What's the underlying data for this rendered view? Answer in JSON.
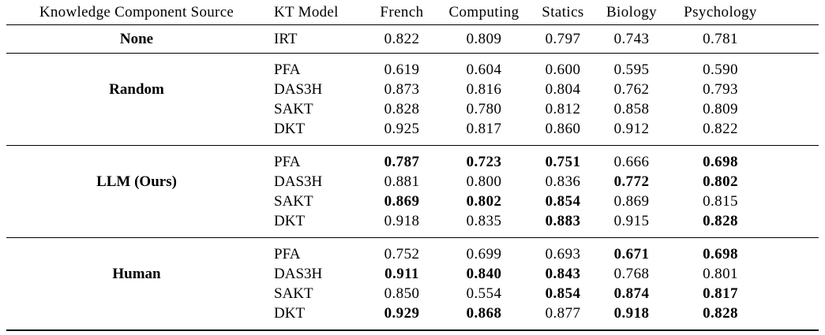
{
  "colors": {
    "text": "#000000",
    "rule": "#000000",
    "background": "#ffffff"
  },
  "table": {
    "columns": [
      "Knowledge Component Source",
      "KT Model",
      "French",
      "Computing",
      "Statics",
      "Biology",
      "Psychology"
    ],
    "sections": [
      {
        "source": "None",
        "rows": [
          {
            "model": "IRT",
            "values": [
              "0.822",
              "0.809",
              "0.797",
              "0.743",
              "0.781"
            ],
            "bold": [
              false,
              false,
              false,
              false,
              false
            ]
          }
        ]
      },
      {
        "source": "Random",
        "rows": [
          {
            "model": "PFA",
            "values": [
              "0.619",
              "0.604",
              "0.600",
              "0.595",
              "0.590"
            ],
            "bold": [
              false,
              false,
              false,
              false,
              false
            ]
          },
          {
            "model": "DAS3H",
            "values": [
              "0.873",
              "0.816",
              "0.804",
              "0.762",
              "0.793"
            ],
            "bold": [
              false,
              false,
              false,
              false,
              false
            ]
          },
          {
            "model": "SAKT",
            "values": [
              "0.828",
              "0.780",
              "0.812",
              "0.858",
              "0.809"
            ],
            "bold": [
              false,
              false,
              false,
              false,
              false
            ]
          },
          {
            "model": "DKT",
            "values": [
              "0.925",
              "0.817",
              "0.860",
              "0.912",
              "0.822"
            ],
            "bold": [
              false,
              false,
              false,
              false,
              false
            ]
          }
        ]
      },
      {
        "source": "LLM (Ours)",
        "rows": [
          {
            "model": "PFA",
            "values": [
              "0.787",
              "0.723",
              "0.751",
              "0.666",
              "0.698"
            ],
            "bold": [
              true,
              true,
              true,
              false,
              true
            ]
          },
          {
            "model": "DAS3H",
            "values": [
              "0.881",
              "0.800",
              "0.836",
              "0.772",
              "0.802"
            ],
            "bold": [
              false,
              false,
              false,
              true,
              true
            ]
          },
          {
            "model": "SAKT",
            "values": [
              "0.869",
              "0.802",
              "0.854",
              "0.869",
              "0.815"
            ],
            "bold": [
              true,
              true,
              true,
              false,
              false
            ]
          },
          {
            "model": "DKT",
            "values": [
              "0.918",
              "0.835",
              "0.883",
              "0.915",
              "0.828"
            ],
            "bold": [
              false,
              false,
              true,
              false,
              true
            ]
          }
        ]
      },
      {
        "source": "Human",
        "rows": [
          {
            "model": "PFA",
            "values": [
              "0.752",
              "0.699",
              "0.693",
              "0.671",
              "0.698"
            ],
            "bold": [
              false,
              false,
              false,
              true,
              true
            ]
          },
          {
            "model": "DAS3H",
            "values": [
              "0.911",
              "0.840",
              "0.843",
              "0.768",
              "0.801"
            ],
            "bold": [
              true,
              true,
              true,
              false,
              false
            ]
          },
          {
            "model": "SAKT",
            "values": [
              "0.850",
              "0.554",
              "0.854",
              "0.874",
              "0.817"
            ],
            "bold": [
              false,
              false,
              true,
              true,
              true
            ]
          },
          {
            "model": "DKT",
            "values": [
              "0.929",
              "0.868",
              "0.877",
              "0.918",
              "0.828"
            ],
            "bold": [
              true,
              true,
              false,
              true,
              true
            ]
          }
        ]
      }
    ]
  }
}
